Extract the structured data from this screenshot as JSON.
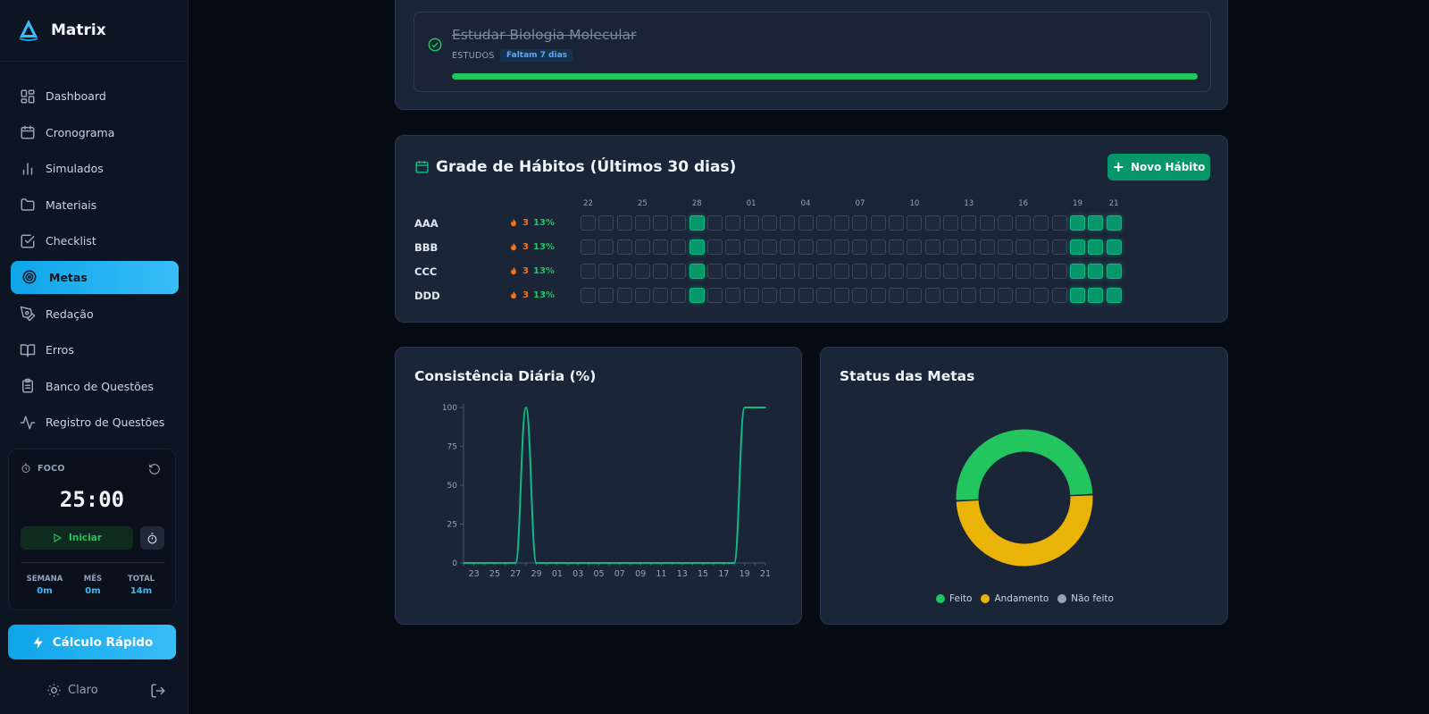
{
  "app": {
    "name": "Matrix"
  },
  "sidebar": {
    "items": [
      {
        "label": "Dashboard",
        "icon": "dashboard-icon",
        "active": false
      },
      {
        "label": "Cronograma",
        "icon": "calendar-icon",
        "active": false
      },
      {
        "label": "Simulados",
        "icon": "bar-chart-icon",
        "active": false
      },
      {
        "label": "Materiais",
        "icon": "folder-icon",
        "active": false
      },
      {
        "label": "Checklist",
        "icon": "checklist-icon",
        "active": false
      },
      {
        "label": "Metas",
        "icon": "target-icon",
        "active": true
      },
      {
        "label": "Redação",
        "icon": "pen-icon",
        "active": false
      },
      {
        "label": "Erros",
        "icon": "book-icon",
        "active": false
      },
      {
        "label": "Banco de Questões",
        "icon": "clipboard-icon",
        "active": false
      },
      {
        "label": "Registro de Questões",
        "icon": "activity-icon",
        "active": false
      }
    ]
  },
  "focus": {
    "label": "FOCO",
    "time": "25:00",
    "start_label": "Iniciar",
    "stats": [
      {
        "label": "SEMANA",
        "value": "0m"
      },
      {
        "label": "MÊS",
        "value": "0m"
      },
      {
        "label": "TOTAL",
        "value": "14m"
      }
    ]
  },
  "quick_calc": {
    "label": "Cálculo Rápido"
  },
  "theme": {
    "label": "Claro"
  },
  "goal": {
    "title": "Estudar Biologia Molecular",
    "category": "ESTUDOS",
    "badge": "Faltam 7 dias",
    "progress": 1.0,
    "status": "done"
  },
  "habits": {
    "title": "Grade de Hábitos (Últimos 30 dias)",
    "new_button": "Novo Hábito",
    "day_labels": [
      "22",
      "25",
      "28",
      "01",
      "04",
      "07",
      "10",
      "13",
      "16",
      "19",
      "21"
    ],
    "day_label_positions": [
      0,
      3,
      6,
      9,
      12,
      15,
      18,
      21,
      24,
      27,
      29
    ],
    "rows": [
      {
        "name": "AAA",
        "streak": "3",
        "percent": "13%",
        "done_days": [
          6,
          27,
          28,
          29
        ]
      },
      {
        "name": "BBB",
        "streak": "3",
        "percent": "13%",
        "done_days": [
          6,
          27,
          28,
          29
        ]
      },
      {
        "name": "CCC",
        "streak": "3",
        "percent": "13%",
        "done_days": [
          6,
          27,
          28,
          29
        ]
      },
      {
        "name": "DDD",
        "streak": "3",
        "percent": "13%",
        "done_days": [
          6,
          27,
          28,
          29
        ]
      }
    ],
    "total_days": 30
  },
  "consistency": {
    "title": "Consistência Diária (%)"
  },
  "status": {
    "title": "Status das Metas"
  },
  "chart_data": [
    {
      "type": "line",
      "title": "Consistência Diária (%)",
      "x": [
        "22",
        "23",
        "24",
        "25",
        "26",
        "27",
        "28",
        "29",
        "30",
        "01",
        "02",
        "03",
        "04",
        "05",
        "06",
        "07",
        "08",
        "09",
        "10",
        "11",
        "12",
        "13",
        "14",
        "15",
        "16",
        "17",
        "18",
        "19",
        "20",
        "21"
      ],
      "x_tick_labels": [
        "23",
        "25",
        "27",
        "29",
        "01",
        "03",
        "05",
        "07",
        "09",
        "11",
        "13",
        "15",
        "17",
        "19",
        "21"
      ],
      "series": [
        {
          "values": [
            0,
            0,
            0,
            0,
            0,
            0,
            100,
            0,
            0,
            0,
            0,
            0,
            0,
            0,
            0,
            0,
            0,
            0,
            0,
            0,
            0,
            0,
            0,
            0,
            0,
            0,
            0,
            100,
            100,
            100
          ],
          "color": "#10b981"
        }
      ],
      "ylim": [
        0,
        100
      ],
      "y_ticks": [
        0,
        25,
        50,
        75,
        100
      ],
      "grid": false
    },
    {
      "type": "pie",
      "title": "Status das Metas",
      "labels": [
        "Feito",
        "Andamento",
        "Não feito"
      ],
      "values": [
        1,
        1,
        0
      ],
      "colors": [
        "#22c55e",
        "#eab308",
        "#9ca3af"
      ],
      "legend": "bottom"
    }
  ]
}
